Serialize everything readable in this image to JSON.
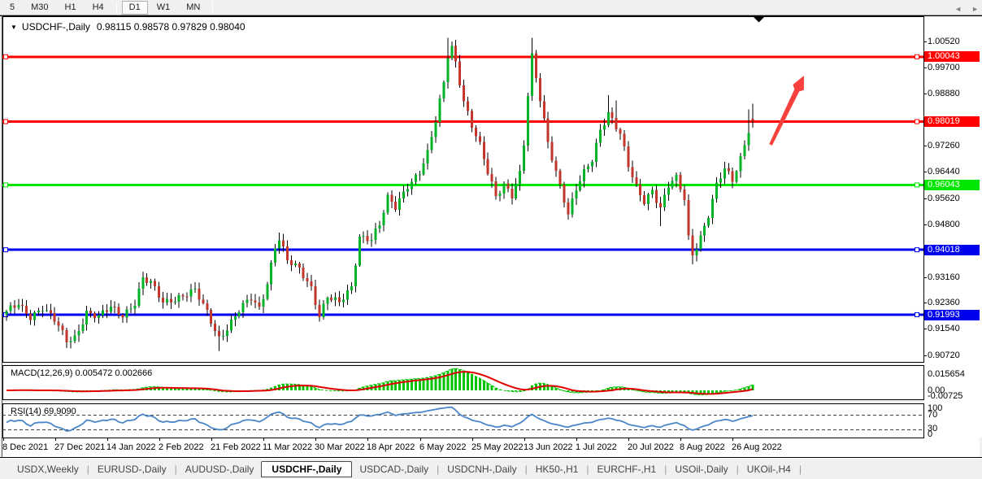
{
  "toolbar": {
    "items": [
      {
        "label": "5",
        "active": false
      },
      {
        "label": "M30",
        "active": false
      },
      {
        "label": "H1",
        "active": false
      },
      {
        "label": "H4",
        "active": false
      },
      {
        "type": "sep"
      },
      {
        "label": "D1",
        "active": true
      },
      {
        "label": "W1",
        "active": false
      },
      {
        "label": "MN",
        "active": false
      },
      {
        "type": "sep"
      }
    ]
  },
  "header": {
    "symbol": "USDCHF-,Daily",
    "ohlc_text": "0.98115 0.98578 0.97829 0.98040",
    "dropdown_glyph": "▼"
  },
  "macd_panel": {
    "label": "MACD(12,26,9) 0.005472 0.002666"
  },
  "rsi_panel": {
    "label": "RSI(14) 69.9090"
  },
  "price_axis": {
    "plain_ticks": [
      "1.00520",
      "0.99700",
      "0.98880",
      "0.97260",
      "0.96440",
      "0.95620",
      "0.94800",
      "0.93160",
      "0.92360",
      "0.91540",
      "0.90720"
    ]
  },
  "tabs": {
    "items": [
      {
        "label": "USDX,Weekly",
        "active": false
      },
      {
        "label": "EURUSD-,Daily",
        "active": false
      },
      {
        "label": "AUDUSD-,Daily",
        "active": false
      },
      {
        "label": "USDCHF-,Daily",
        "active": true
      },
      {
        "label": "USDCAD-,Daily",
        "active": false
      },
      {
        "label": "USDCNH-,Daily",
        "active": false
      },
      {
        "label": "HK50-,H1",
        "active": false
      },
      {
        "label": "EURCHF-,H1",
        "active": false
      },
      {
        "label": "USOil-,Daily",
        "active": false
      },
      {
        "label": "UKOil-,H4",
        "active": false
      }
    ],
    "nav_prev": "◄",
    "nav_next": "►"
  },
  "chart_data": {
    "type": "candlestick",
    "symbol": "USDCHF-,Daily",
    "timeframe": "Daily",
    "current_bar": {
      "open": 0.98115,
      "high": 0.98578,
      "low": 0.97829,
      "close": 0.9804
    },
    "ylim": [
      0.9052,
      1.0128
    ],
    "y_ticks": [
      1.0052,
      0.997,
      0.9888,
      0.9726,
      0.9644,
      0.9562,
      0.948,
      0.9316,
      0.9236,
      0.9154,
      0.9072
    ],
    "x_labels": [
      "8 Dec 2021",
      "27 Dec 2021",
      "14 Jan 2022",
      "2 Feb 2022",
      "21 Feb 2022",
      "11 Mar 2022",
      "30 Mar 2022",
      "18 Apr 2022",
      "6 May 2022",
      "25 May 2022",
      "13 Jun 2022",
      "1 Jul 2022",
      "20 Jul 2022",
      "8 Aug 2022",
      "26 Aug 2022"
    ],
    "bars_total": 187,
    "grid": false,
    "h_lines": [
      {
        "label": "1.00043",
        "value": 1.00043,
        "color": "#ff0000"
      },
      {
        "label": "0.98019",
        "value": 0.98019,
        "color": "#ff0000"
      },
      {
        "label": "0.96043",
        "value": 0.96043,
        "color": "#00e600"
      },
      {
        "label": "0.94018",
        "value": 0.94018,
        "color": "#0000f0"
      },
      {
        "label": "0.91993",
        "value": 0.91993,
        "color": "#0000f0"
      }
    ],
    "close_anchors": [
      [
        0,
        0.9205
      ],
      [
        3,
        0.9232
      ],
      [
        6,
        0.9196
      ],
      [
        9,
        0.9222
      ],
      [
        12,
        0.918
      ],
      [
        15,
        0.9118
      ],
      [
        17,
        0.913
      ],
      [
        20,
        0.9208
      ],
      [
        23,
        0.919
      ],
      [
        26,
        0.9222
      ],
      [
        29,
        0.92
      ],
      [
        32,
        0.9238
      ],
      [
        34,
        0.931
      ],
      [
        36,
        0.9295
      ],
      [
        39,
        0.9238
      ],
      [
        43,
        0.9256
      ],
      [
        47,
        0.9272
      ],
      [
        50,
        0.9205
      ],
      [
        53,
        0.9128
      ],
      [
        55,
        0.916
      ],
      [
        58,
        0.9212
      ],
      [
        61,
        0.9248
      ],
      [
        63,
        0.9218
      ],
      [
        65,
        0.9302
      ],
      [
        67,
        0.9415
      ],
      [
        68,
        0.944
      ],
      [
        70,
        0.9366
      ],
      [
        73,
        0.9338
      ],
      [
        76,
        0.9285
      ],
      [
        78,
        0.92
      ],
      [
        80,
        0.9258
      ],
      [
        83,
        0.9232
      ],
      [
        86,
        0.9282
      ],
      [
        88,
        0.9445
      ],
      [
        91,
        0.944
      ],
      [
        93,
        0.948
      ],
      [
        95,
        0.956
      ],
      [
        97,
        0.9532
      ],
      [
        100,
        0.9605
      ],
      [
        103,
        0.9648
      ],
      [
        105,
        0.9702
      ],
      [
        107,
        0.9802
      ],
      [
        109,
        0.992
      ],
      [
        110,
        1.0008
      ],
      [
        111,
        1.0035
      ],
      [
        112,
        0.999
      ],
      [
        114,
        0.987
      ],
      [
        116,
        0.979
      ],
      [
        118,
        0.9724
      ],
      [
        120,
        0.964
      ],
      [
        122,
        0.9568
      ],
      [
        124,
        0.961
      ],
      [
        126,
        0.9576
      ],
      [
        128,
        0.964
      ],
      [
        129,
        0.973
      ],
      [
        130,
        0.988
      ],
      [
        131,
        1.0
      ],
      [
        132,
        0.9935
      ],
      [
        133,
        0.987
      ],
      [
        135,
        0.974
      ],
      [
        137,
        0.965
      ],
      [
        139,
        0.956
      ],
      [
        140,
        0.9512
      ],
      [
        142,
        0.9588
      ],
      [
        144,
        0.964
      ],
      [
        146,
        0.9684
      ],
      [
        148,
        0.978
      ],
      [
        150,
        0.9832
      ],
      [
        151,
        0.981
      ],
      [
        153,
        0.976
      ],
      [
        155,
        0.966
      ],
      [
        157,
        0.9596
      ],
      [
        159,
        0.9556
      ],
      [
        161,
        0.9592
      ],
      [
        163,
        0.9532
      ],
      [
        165,
        0.96
      ],
      [
        167,
        0.9622
      ],
      [
        169,
        0.956
      ],
      [
        170,
        0.944
      ],
      [
        171,
        0.939
      ],
      [
        173,
        0.9445
      ],
      [
        175,
        0.9512
      ],
      [
        177,
        0.96
      ],
      [
        179,
        0.9652
      ],
      [
        181,
        0.9618
      ],
      [
        183,
        0.969
      ],
      [
        185,
        0.978
      ],
      [
        186,
        0.9804
      ]
    ],
    "wick_overrides": {
      "15": {
        "low": 0.9095
      },
      "53": {
        "low": 0.9086
      },
      "68": {
        "high": 0.9456
      },
      "78": {
        "low": 0.9178
      },
      "110": {
        "high": 1.0063
      },
      "111": {
        "high": 1.0052
      },
      "131": {
        "high": 1.0063
      },
      "150": {
        "high": 0.9885
      },
      "152": {
        "high": 0.9868
      },
      "163": {
        "low": 0.9476
      },
      "171": {
        "low": 0.9356
      },
      "185": {
        "high": 0.984
      }
    },
    "noise": {
      "close_amp1": 0.0009,
      "close_amp2": 0.0006,
      "wick_base": 0.0004,
      "wick_amp": 0.0016
    },
    "colors": {
      "bull": "#00b226",
      "bear": "#c2362b",
      "wick": "#000000",
      "macd_hist": "#00c400",
      "macd_line": "#00c400",
      "macd_signal": "#e00000",
      "rsi_line": "#4a86c8",
      "annotation_arrow": "#f8403c",
      "bar_marker": "#000000"
    },
    "indicators": [
      {
        "name": "MACD",
        "params": "12,26,9",
        "main_value": 0.005472,
        "signal_value": 0.002666,
        "axis_labels": [
          "0.015654",
          "0.00",
          "-0.00725"
        ]
      },
      {
        "name": "RSI",
        "params": "14",
        "value": 69.909,
        "axis_labels": [
          "100",
          "70",
          "30",
          "0"
        ],
        "dashed_levels": [
          70,
          30
        ]
      }
    ],
    "annotations": [
      {
        "type": "arrow",
        "direction": "up-right",
        "from_price": 0.972,
        "to_price": 0.994
      },
      {
        "type": "current-bar-marker",
        "glyph": "▼"
      }
    ]
  }
}
